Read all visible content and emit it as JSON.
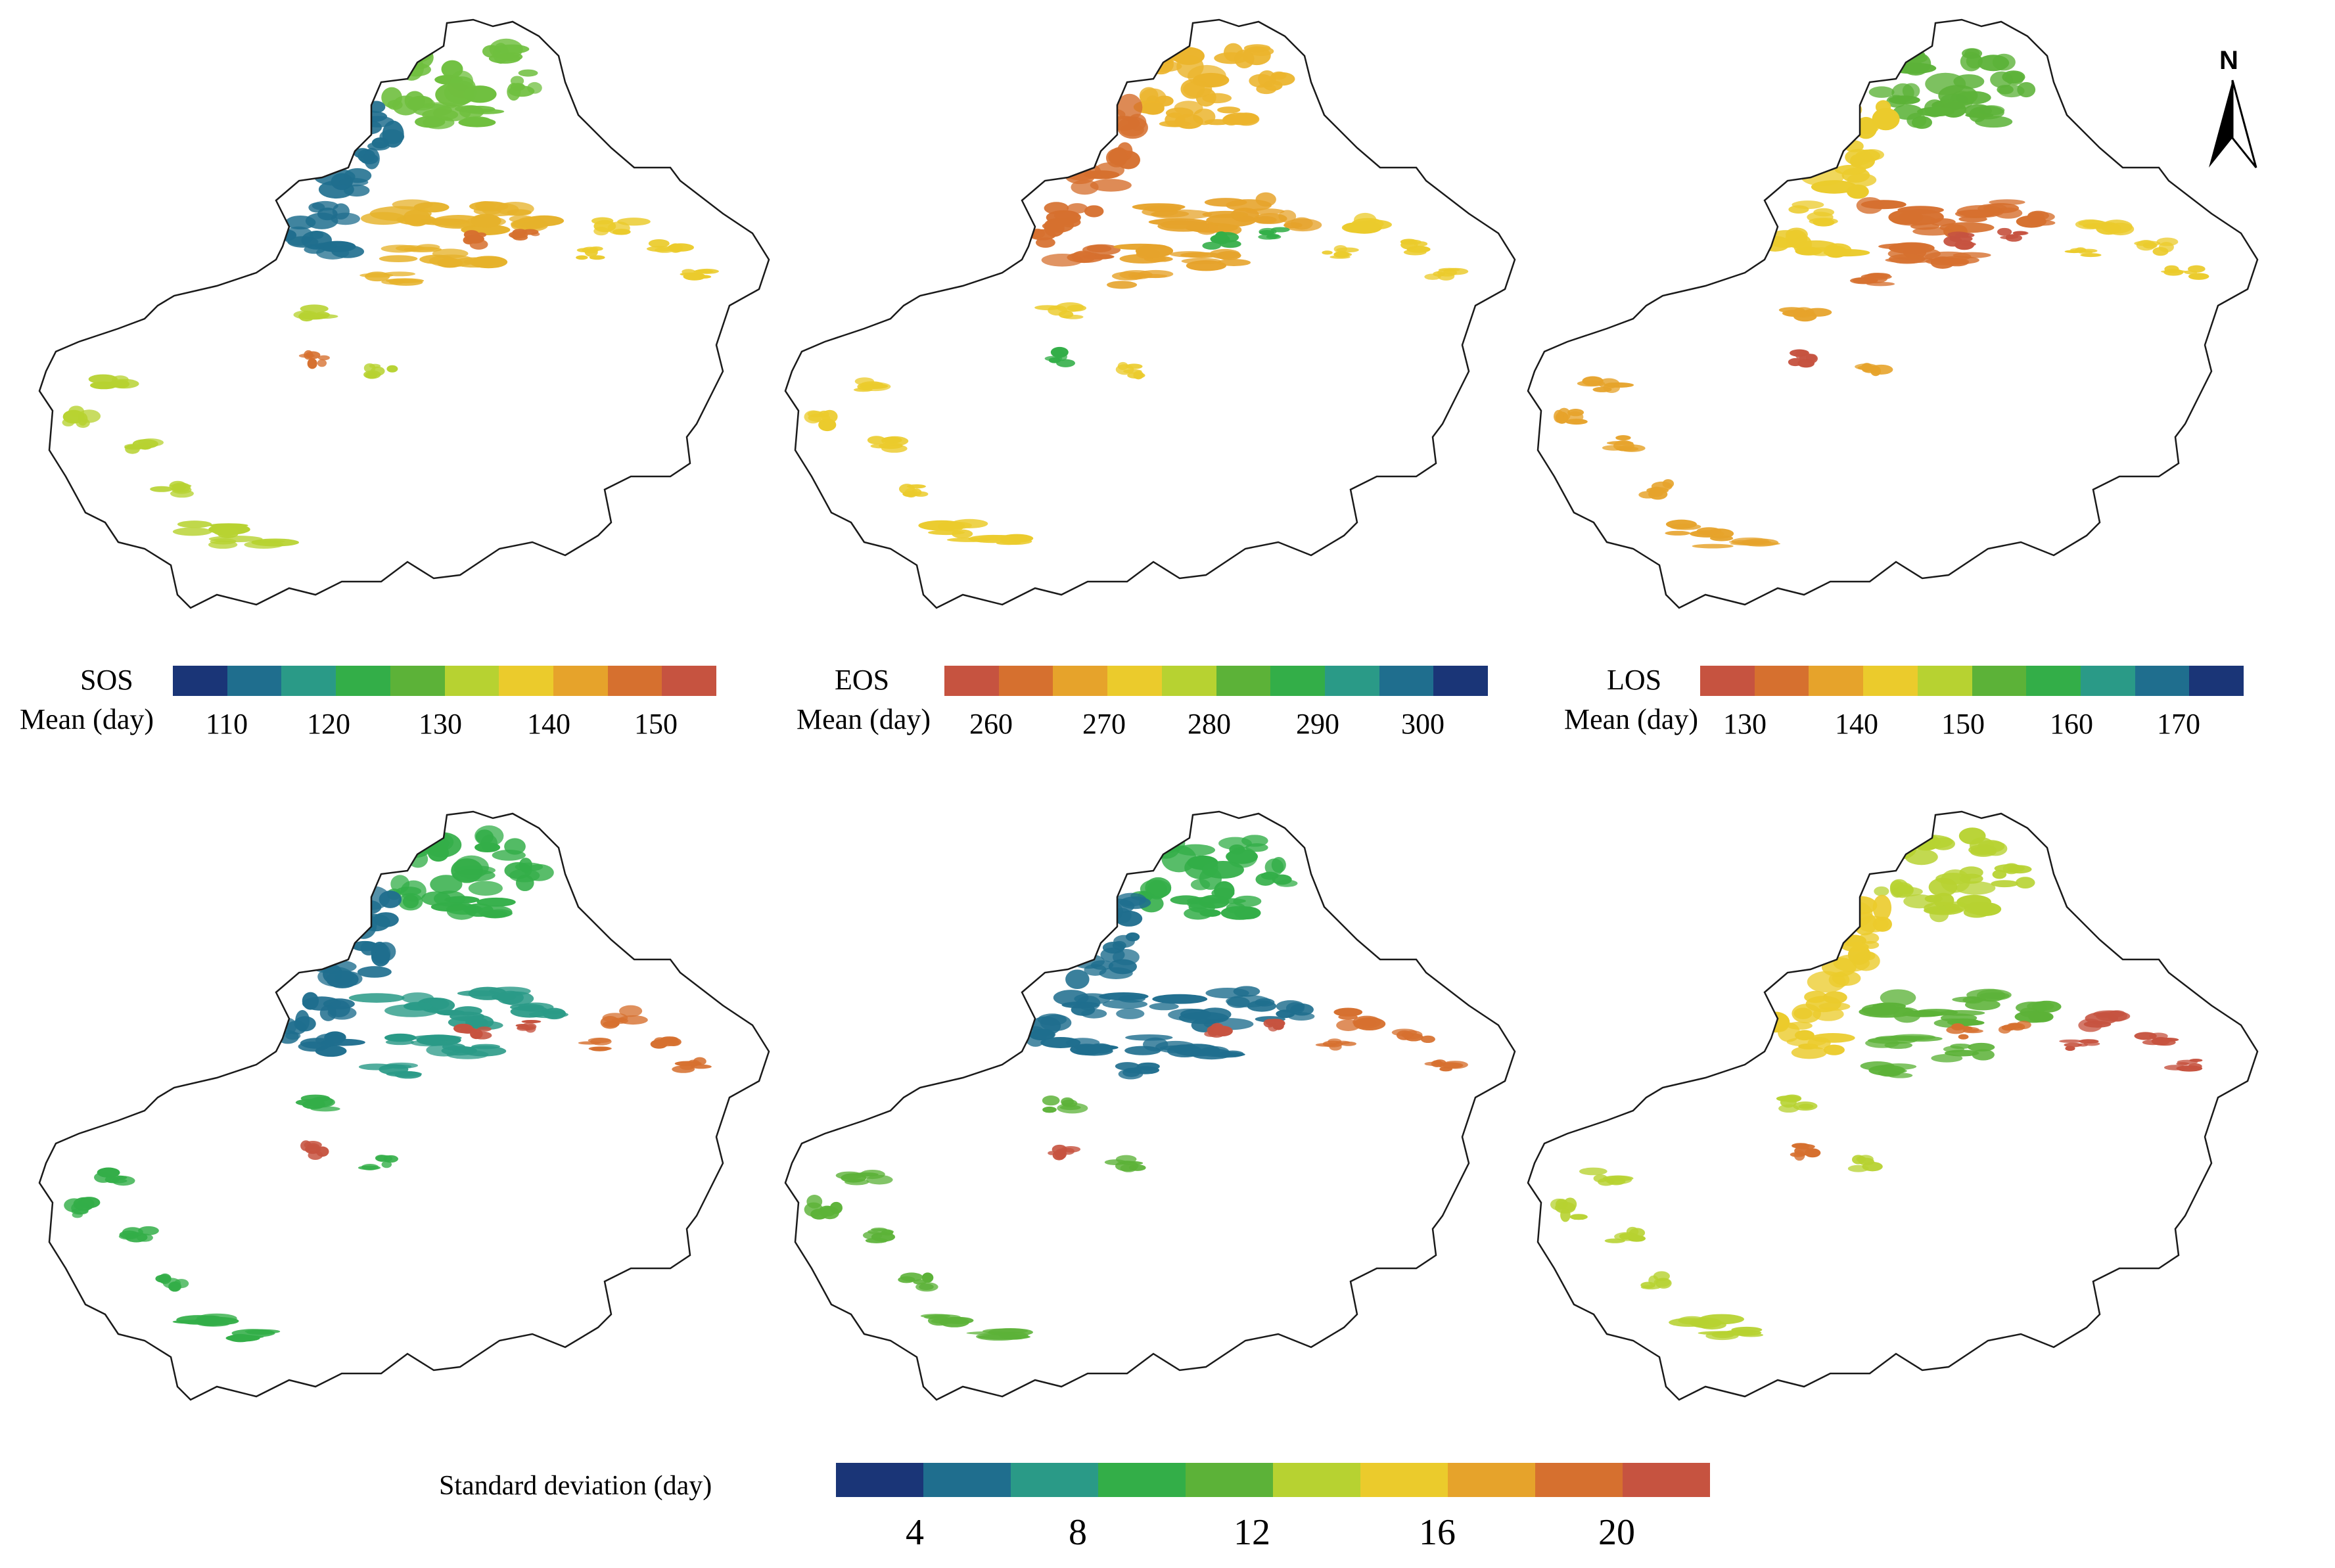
{
  "north_arrow": {
    "label": "N"
  },
  "legends": {
    "sos": {
      "title_line1": "SOS",
      "title_line2": "Mean (day)",
      "ticks": [
        "110",
        "120",
        "130",
        "140",
        "150"
      ],
      "colors": [
        "#1a3577",
        "#1f6e8e",
        "#2a9a87",
        "#33ae48",
        "#5cb238",
        "#b7d231",
        "#ebcb2c",
        "#e6a32b",
        "#d6702f",
        "#c65340"
      ]
    },
    "eos": {
      "title_line1": "EOS",
      "title_line2": "Mean (day)",
      "ticks": [
        "260",
        "270",
        "280",
        "290",
        "300"
      ],
      "colors": [
        "#c65340",
        "#d6702f",
        "#e6a32b",
        "#ebcb2c",
        "#b7d231",
        "#5cb238",
        "#33ae48",
        "#2a9a87",
        "#1f6e8e",
        "#1a3577"
      ]
    },
    "los": {
      "title_line1": "LOS",
      "title_line2": "Mean (day)",
      "ticks": [
        "130",
        "140",
        "150",
        "160",
        "170"
      ],
      "colors": [
        "#c65340",
        "#d6702f",
        "#e6a32b",
        "#ebcb2c",
        "#b7d231",
        "#5cb238",
        "#33ae48",
        "#2a9a87",
        "#1f6e8e",
        "#1a3577"
      ]
    },
    "sd": {
      "title": "Standard deviation (day)",
      "ticks": [
        "4",
        "8",
        "12",
        "16",
        "20"
      ],
      "colors": [
        "#1a3577",
        "#1f6e8e",
        "#2a9a87",
        "#33ae48",
        "#5cb238",
        "#b7d231",
        "#ebcb2c",
        "#e6a32b",
        "#d6702f",
        "#c65340"
      ]
    }
  },
  "panels": [
    {
      "id": "sos-mean",
      "patches": {
        "north": "#6fbf3e",
        "northwest": "#1f6e8e",
        "tianshan": "#e6b22b",
        "east": "#ebcb2c",
        "south": "#b7d231",
        "accent": "#d6702f"
      }
    },
    {
      "id": "eos-mean",
      "patches": {
        "north": "#ebb42c",
        "northwest": "#d6702f",
        "tianshan": "#e6a32b",
        "east": "#ebcb2c",
        "south": "#ebcb2c",
        "accent": "#33ae48"
      }
    },
    {
      "id": "los-mean",
      "patches": {
        "north": "#5cb238",
        "northwest": "#ebcb2c",
        "tianshan": "#d6702f",
        "east": "#ebcb2c",
        "south": "#e6a32b",
        "accent": "#c65340"
      }
    },
    {
      "id": "sos-sd",
      "patches": {
        "north": "#33ae48",
        "northwest": "#1f6e8e",
        "tianshan": "#2a9a87",
        "east": "#d6702f",
        "south": "#33ae48",
        "accent": "#c65340"
      }
    },
    {
      "id": "eos-sd",
      "patches": {
        "north": "#33ae48",
        "northwest": "#1f6e8e",
        "tianshan": "#1f6e8e",
        "east": "#d6702f",
        "south": "#5cb238",
        "accent": "#c65340"
      }
    },
    {
      "id": "los-sd",
      "patches": {
        "north": "#b7d231",
        "northwest": "#ebcb2c",
        "tianshan": "#5cb238",
        "east": "#c65340",
        "south": "#b7d231",
        "accent": "#d6702f"
      }
    }
  ]
}
